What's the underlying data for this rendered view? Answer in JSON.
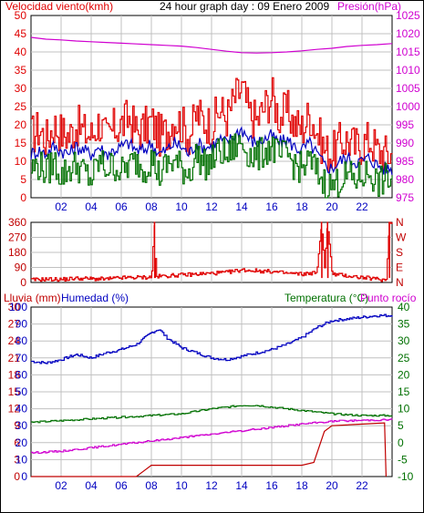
{
  "header": {
    "left_label": "Velocidad viento(kmh)",
    "title": "24 hour graph day : 09 Enero 2009",
    "right_label": "Presión(hPa)"
  },
  "colors": {
    "red": "#e00000",
    "blue": "#0000c0",
    "green": "#007000",
    "magenta": "#d000d0",
    "darkred": "#c00000",
    "grid": "#c0c0c0",
    "frame": "#000000"
  },
  "chart_data": [
    {
      "type": "line",
      "panel": "wind_pressure",
      "x_label_ticks": [
        "02",
        "04",
        "06",
        "08",
        "10",
        "12",
        "14",
        "16",
        "18",
        "20",
        "22"
      ],
      "xlim": [
        0,
        24
      ],
      "left_axis": {
        "label": "Velocidad viento(kmh)",
        "ylim": [
          0,
          50
        ],
        "ticks": [
          "0",
          "5",
          "10",
          "15",
          "20",
          "25",
          "30",
          "35",
          "40",
          "45",
          "50"
        ]
      },
      "right_axis": {
        "label": "Presión(hPa)",
        "ylim": [
          975,
          1025
        ],
        "ticks": [
          "975",
          "980",
          "985",
          "990",
          "995",
          "1000",
          "1005",
          "1010",
          "1015",
          "1020",
          "1025"
        ]
      },
      "series": [
        {
          "color": "red",
          "axis": "left",
          "x": [
            0,
            0.5,
            1,
            1.5,
            2,
            2.5,
            3,
            3.5,
            4,
            4.5,
            5,
            5.5,
            6,
            6.5,
            7,
            7.5,
            8,
            8.5,
            9,
            9.5,
            10,
            10.5,
            11,
            11.5,
            12,
            12.5,
            13,
            13.5,
            14,
            14.5,
            15,
            15.5,
            16,
            16.5,
            17,
            17.5,
            18,
            18.5,
            19,
            19.5,
            20,
            20.5,
            21,
            21.5,
            22,
            22.5,
            23,
            23.5
          ],
          "values": [
            17,
            19,
            16,
            20,
            18,
            17,
            20,
            18,
            17,
            21,
            16,
            19,
            20,
            22,
            18,
            19,
            21,
            17,
            18,
            22,
            20,
            17,
            23,
            21,
            20,
            24,
            22,
            27,
            30,
            23,
            21,
            25,
            28,
            22,
            24,
            20,
            19,
            23,
            18,
            13,
            12,
            15,
            16,
            14,
            15,
            16,
            13,
            12
          ]
        },
        {
          "color": "blue",
          "axis": "left",
          "x": [
            0,
            0.5,
            1,
            1.5,
            2,
            2.5,
            3,
            3.5,
            4,
            4.5,
            5,
            5.5,
            6,
            6.5,
            7,
            7.5,
            8,
            8.5,
            9,
            9.5,
            10,
            10.5,
            11,
            11.5,
            12,
            12.5,
            13,
            13.5,
            14,
            14.5,
            15,
            15.5,
            16,
            16.5,
            17,
            17.5,
            18,
            18.5,
            19,
            19.5,
            20,
            20.5,
            21,
            21.5,
            22,
            22.5,
            23,
            23.5
          ],
          "values": [
            12,
            13,
            12,
            14,
            13,
            12,
            14,
            13,
            12,
            14,
            12,
            13,
            14,
            15,
            13,
            13,
            15,
            12,
            13,
            15,
            14,
            12,
            15,
            14,
            14,
            16,
            15,
            17,
            19,
            16,
            15,
            16,
            17,
            15,
            16,
            14,
            13,
            15,
            12,
            9,
            8,
            10,
            11,
            10,
            10,
            11,
            9,
            8
          ]
        },
        {
          "color": "green",
          "axis": "left",
          "x": [
            0,
            0.5,
            1,
            1.5,
            2,
            2.5,
            3,
            3.5,
            4,
            4.5,
            5,
            5.5,
            6,
            6.5,
            7,
            7.5,
            8,
            8.5,
            9,
            9.5,
            10,
            10.5,
            11,
            11.5,
            12,
            12.5,
            13,
            13.5,
            14,
            14.5,
            15,
            15.5,
            16,
            16.5,
            17,
            17.5,
            18,
            18.5,
            19,
            19.5,
            20,
            20.5,
            21,
            21.5,
            22,
            22.5,
            23,
            23.5
          ],
          "values": [
            8,
            9,
            7,
            10,
            6,
            8,
            9,
            7,
            5,
            10,
            8,
            9,
            7,
            9,
            10,
            8,
            11,
            6,
            9,
            10,
            8,
            7,
            12,
            9,
            10,
            13,
            11,
            14,
            15,
            12,
            11,
            13,
            14,
            11,
            12,
            9,
            8,
            10,
            7,
            4,
            3,
            5,
            6,
            5,
            6,
            7,
            4,
            5
          ]
        },
        {
          "color": "magenta",
          "axis": "right",
          "x": [
            0,
            1,
            2,
            3,
            4,
            5,
            6,
            7,
            8,
            9,
            10,
            11,
            12,
            13,
            14,
            15,
            16,
            17,
            18,
            19,
            20,
            21,
            22,
            23,
            24
          ],
          "values": [
            1019,
            1018.5,
            1018.3,
            1018,
            1017.8,
            1017.6,
            1017.4,
            1017.2,
            1017,
            1016.8,
            1016.6,
            1016.2,
            1015.7,
            1015.2,
            1014.8,
            1014.7,
            1014.8,
            1015,
            1015.3,
            1015.7,
            1016,
            1016.5,
            1016.8,
            1017,
            1017.3
          ]
        }
      ]
    },
    {
      "type": "line",
      "panel": "wind_direction",
      "xlim": [
        0,
        24
      ],
      "left_axis": {
        "ylim": [
          0,
          360
        ],
        "ticks": [
          "0",
          "90",
          "180",
          "270",
          "360"
        ]
      },
      "right_axis": {
        "ticks": [
          "N",
          "E",
          "S",
          "W",
          "N"
        ]
      },
      "series": [
        {
          "color": "red",
          "x": [
            0,
            1,
            2,
            3,
            4,
            5,
            6,
            7,
            8,
            8.2,
            8.3,
            9,
            10,
            11,
            12,
            13,
            14,
            15,
            16,
            17,
            18,
            19,
            19.3,
            19.5,
            19.7,
            20,
            21,
            22,
            23,
            23.6,
            23.8
          ],
          "values": [
            15,
            20,
            18,
            25,
            22,
            20,
            28,
            30,
            32,
            360,
            35,
            40,
            45,
            50,
            55,
            60,
            75,
            70,
            65,
            55,
            50,
            60,
            360,
            90,
            360,
            50,
            40,
            30,
            20,
            15,
            360
          ]
        }
      ]
    },
    {
      "type": "line",
      "panel": "rain_humidity_temperature",
      "xlim": [
        0,
        24
      ],
      "rain_axis": {
        "label": "Lluvia (mm)",
        "ticks": [
          "0",
          "3",
          "6",
          "9",
          "12",
          "15",
          "18",
          "21",
          "24",
          "27",
          "30"
        ]
      },
      "humidity_axis": {
        "label": "Humedad (%)",
        "ylim": [
          0,
          100
        ],
        "ticks": [
          "0",
          "10",
          "20",
          "30",
          "40",
          "50",
          "60",
          "70",
          "80",
          "90",
          "100"
        ]
      },
      "temperature_axis": {
        "label": "Temperatura (°C)",
        "label2": "Punto rocío",
        "ylim": [
          -10,
          40
        ],
        "ticks": [
          "-10",
          "-5",
          "0",
          "5",
          "10",
          "15",
          "20",
          "25",
          "30",
          "35",
          "40"
        ]
      },
      "series": [
        {
          "color": "blue",
          "axis": "humidity",
          "x": [
            0,
            1,
            2,
            3,
            4,
            5,
            6,
            7,
            8,
            8.5,
            9,
            10,
            11,
            12,
            13,
            14,
            15,
            16,
            17,
            18,
            19,
            20,
            21,
            22,
            23,
            24
          ],
          "values": [
            68,
            67,
            69,
            72,
            70,
            73,
            75,
            78,
            85,
            87,
            82,
            76,
            73,
            70,
            69,
            71,
            73,
            75,
            78,
            82,
            88,
            92,
            93,
            94,
            95,
            95
          ]
        },
        {
          "color": "green",
          "axis": "temperature",
          "x": [
            0,
            2,
            4,
            6,
            8,
            10,
            12,
            14,
            15,
            16,
            18,
            20,
            22,
            24
          ],
          "values": [
            6,
            6.5,
            7,
            7.5,
            8,
            8.5,
            10,
            11,
            11,
            10.5,
            9.5,
            8.5,
            8,
            8
          ]
        },
        {
          "color": "magenta",
          "axis": "temperature",
          "x": [
            0,
            2,
            4,
            6,
            8,
            10,
            12,
            14,
            16,
            18,
            20,
            22,
            24
          ],
          "values": [
            -3,
            -2.5,
            -1.5,
            -0.5,
            0.5,
            1.5,
            2.5,
            3.5,
            4.5,
            5.5,
            6.3,
            6.6,
            6.8
          ]
        },
        {
          "color": "darkred",
          "axis": "rain",
          "x": [
            0,
            6,
            7,
            7.5,
            8,
            12,
            16,
            18,
            18.8,
            19.5,
            20,
            23.5,
            23.6
          ],
          "values": [
            0,
            0,
            0,
            1,
            2,
            2,
            2,
            2,
            2.5,
            8,
            9,
            9.5,
            0
          ]
        }
      ]
    }
  ],
  "panel3_labels": {
    "rain": "Lluvia (mm)",
    "humidity": "Humedad (%)",
    "temperature": "Temperatura (°C)",
    "dewpoint": "Punto rocío"
  }
}
